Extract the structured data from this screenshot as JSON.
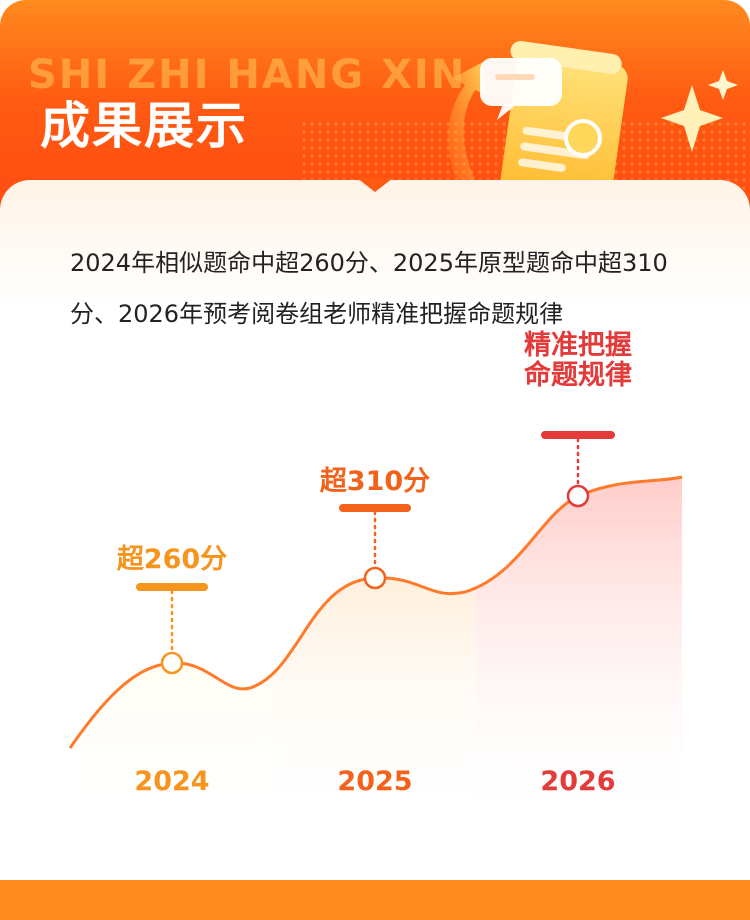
{
  "header": {
    "watermark": "SHI ZHI HANG XIN",
    "title": "成果展示"
  },
  "summary": "2024年相似题命中超260分、2025年原型题命中超310分、2026年预考阅卷组老师精准把握命题规律",
  "colors": {
    "brand_orange": "#ff5a12",
    "curve": "#ff7a2a",
    "year_2024": "#f6951e",
    "year_2025": "#f2621a",
    "year_2026": "#e33a3a"
  },
  "chart_data": {
    "type": "area",
    "categories": [
      "2024",
      "2025",
      "2026"
    ],
    "annotations": [
      {
        "year": "2024",
        "lines": [
          "超260分"
        ],
        "color": "#f6951e"
      },
      {
        "year": "2025",
        "lines": [
          "超310分"
        ],
        "color": "#f2621a"
      },
      {
        "year": "2026",
        "lines": [
          "精准把握",
          "命题规律"
        ],
        "color": "#e33a3a"
      }
    ]
  }
}
